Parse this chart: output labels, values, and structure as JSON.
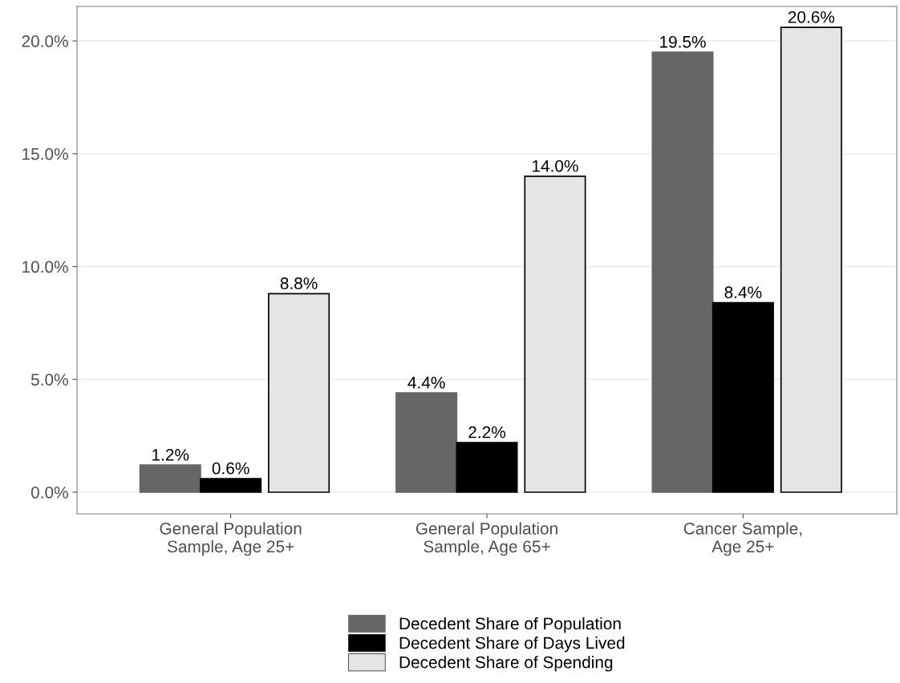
{
  "chart_data": {
    "type": "bar",
    "categories": [
      "General Population\nSample, Age 25+",
      "General Population\nSample, Age 65+",
      "Cancer Sample,\nAge 25+"
    ],
    "series": [
      {
        "name": "Decedent Share of Population",
        "color": "#666666",
        "values": [
          1.2,
          4.4,
          19.5
        ],
        "value_labels": [
          "1.2%",
          "4.4%",
          "19.5%"
        ]
      },
      {
        "name": "Decedent Share of Days Lived",
        "color": "#000000",
        "values": [
          0.6,
          2.2,
          8.4
        ],
        "value_labels": [
          "0.6%",
          "2.2%",
          "8.4%"
        ]
      },
      {
        "name": "Decedent Share of Spending",
        "color": "#e5e5e5",
        "values": [
          8.8,
          14.0,
          20.6
        ],
        "value_labels": [
          "8.8%",
          "14.0%",
          "20.6%"
        ]
      }
    ],
    "ylim": [
      -0.96,
      21.53
    ],
    "yticks": [
      {
        "value": 0,
        "label": "0.0%"
      },
      {
        "value": 5,
        "label": "5.0%"
      },
      {
        "value": 10,
        "label": "10.0%"
      },
      {
        "value": 15,
        "label": "15.0%"
      },
      {
        "value": 20,
        "label": "20.0%"
      }
    ],
    "grid": "y",
    "legend": "bottom"
  }
}
